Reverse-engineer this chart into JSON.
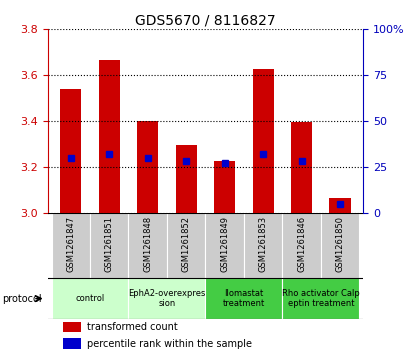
{
  "title": "GDS5670 / 8116827",
  "samples": [
    "GSM1261847",
    "GSM1261851",
    "GSM1261848",
    "GSM1261852",
    "GSM1261849",
    "GSM1261853",
    "GSM1261846",
    "GSM1261850"
  ],
  "transformed_counts": [
    3.54,
    3.665,
    3.4,
    3.295,
    3.225,
    3.625,
    3.395,
    3.065
  ],
  "percentile_ranks": [
    30,
    32,
    30,
    28,
    27,
    32,
    28,
    5
  ],
  "ylim": [
    3.0,
    3.8
  ],
  "yticks": [
    3.0,
    3.2,
    3.4,
    3.6,
    3.8
  ],
  "right_ylim": [
    0,
    100
  ],
  "right_yticks": [
    0,
    25,
    50,
    75,
    100
  ],
  "bar_color": "#cc0000",
  "dot_color": "#0000cc",
  "bar_width": 0.55,
  "protocol_spans": [
    {
      "start": 0,
      "end": 1,
      "label": "control",
      "color": "#ccffcc"
    },
    {
      "start": 2,
      "end": 3,
      "label": "EphA2-overexpres\nsion",
      "color": "#ccffcc"
    },
    {
      "start": 4,
      "end": 5,
      "label": "Ilomastat\ntreatment",
      "color": "#44cc44"
    },
    {
      "start": 6,
      "end": 7,
      "label": "Rho activator Calp\neptin treatment",
      "color": "#44cc44"
    }
  ],
  "protocol_label": "protocol",
  "legend_items": [
    {
      "label": "transformed count",
      "color": "#cc0000"
    },
    {
      "label": "percentile rank within the sample",
      "color": "#0000cc"
    }
  ],
  "sample_bg": "#cccccc",
  "left_tick_color": "#cc0000",
  "right_tick_color": "#0000bb"
}
